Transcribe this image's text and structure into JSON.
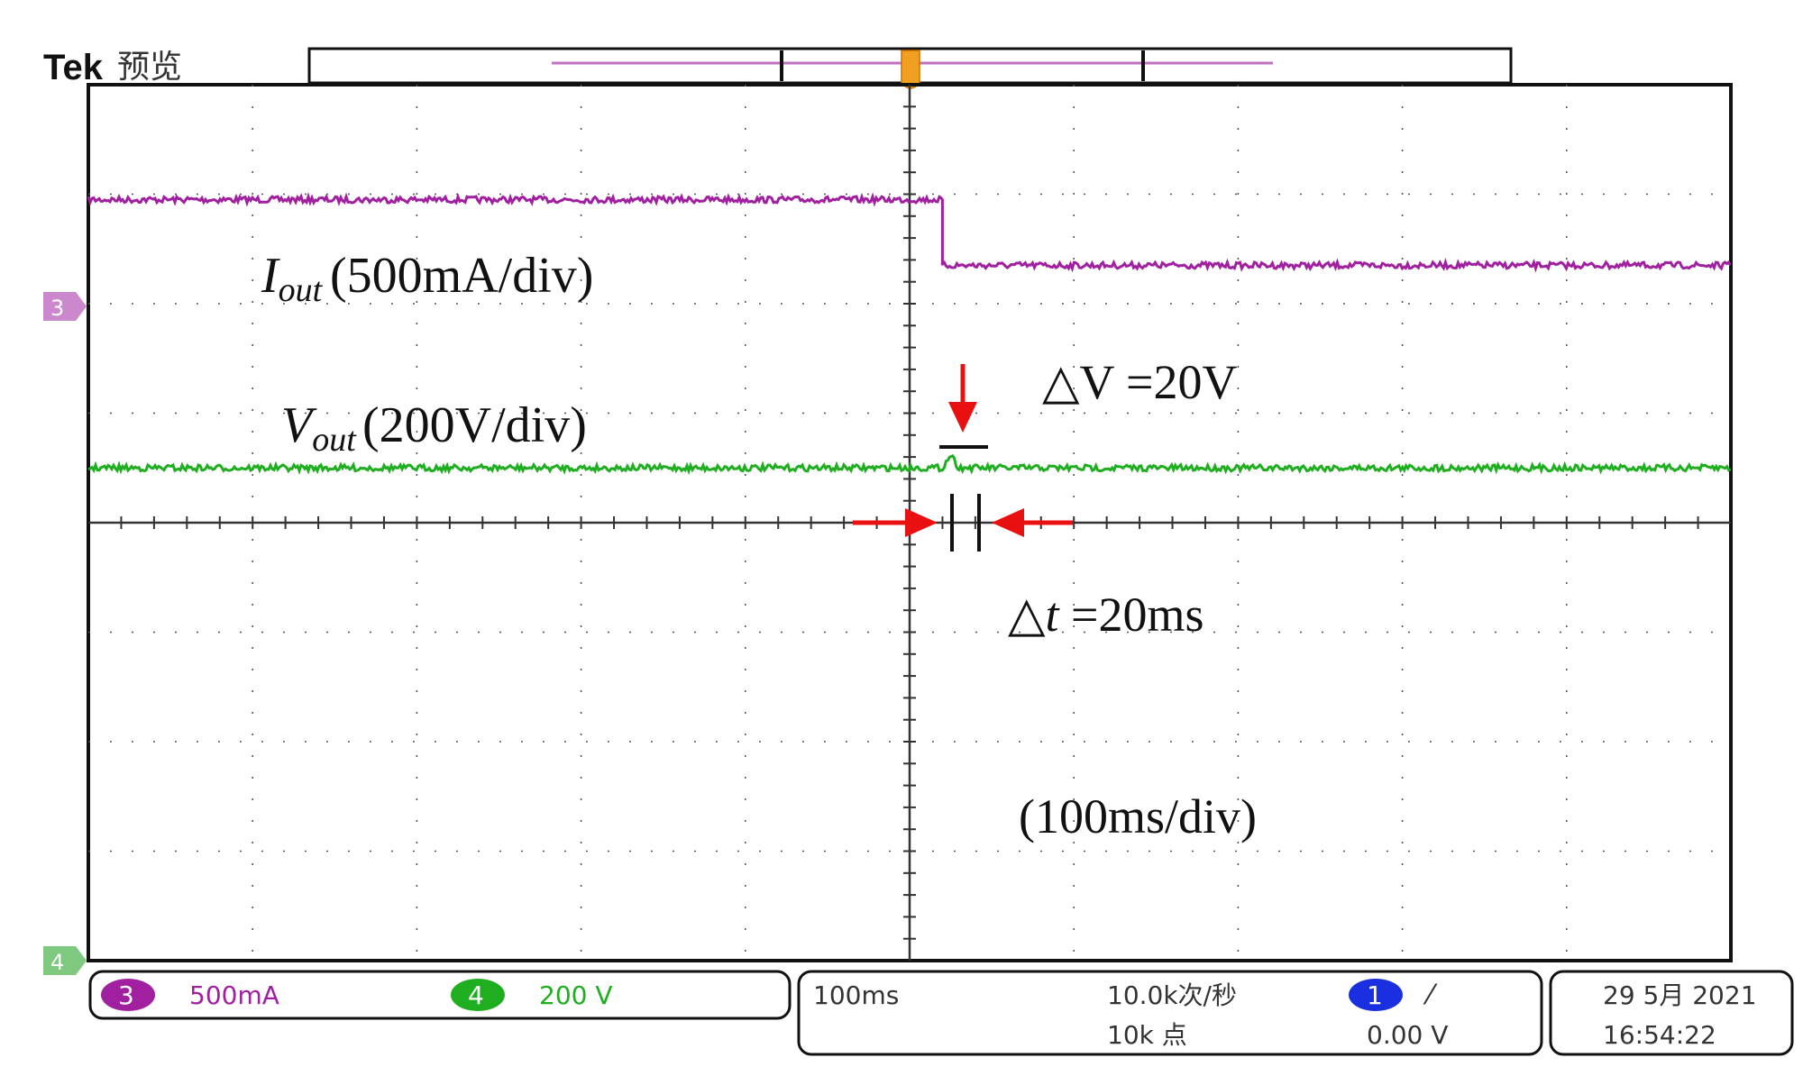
{
  "header": {
    "brand": "Tek",
    "mode": "预览"
  },
  "channels": [
    {
      "number": "3",
      "label_marker": "3",
      "scale": "500mA",
      "color": "#a020a0"
    },
    {
      "number": "4",
      "label_marker": "4",
      "scale": "200 V",
      "color": "#1fae1f"
    }
  ],
  "timebase": {
    "scale": "100ms",
    "sample_rate": "10.0k次/秒",
    "record_length": "10k 点"
  },
  "trigger": {
    "source": "1",
    "slope_symbol": "⁄",
    "level": "0.00 V",
    "color": "#1a2fe0"
  },
  "timestamp": {
    "date": "29 5月 2021",
    "time": "16:54:22"
  },
  "annotations": {
    "iout_base": "I",
    "iout_sub": "out",
    "iout_unit": "(500mA/div)",
    "vout_base": "V",
    "vout_sub": "out",
    "vout_unit": "(200V/div)",
    "delta_v": "△V  =20V",
    "delta_t_prefix": "△",
    "delta_t_var": "t",
    "delta_t_value": " =20ms",
    "time_div": "(100ms/div)",
    "arrow_color": "#e81010"
  },
  "chart_data": {
    "type": "line",
    "xlabel": "",
    "ylabel": "",
    "x_unit": "ms",
    "xlim": [
      -500,
      500
    ],
    "x_divisions": 10,
    "y_divisions": 8,
    "grid": true,
    "series": [
      {
        "name": "Iout",
        "channel": "3",
        "color": "#a020a0",
        "x": [
          -500,
          20,
          20,
          500
        ],
        "y_div": [
          2.95,
          2.95,
          2.35,
          2.35
        ]
      },
      {
        "name": "Vout",
        "channel": "4",
        "color": "#1fae1f",
        "x": [
          -500,
          20,
          25,
          30,
          500
        ],
        "y_div": [
          0.5,
          0.5,
          0.62,
          0.5,
          0.5
        ]
      }
    ],
    "channel_offsets_div": {
      "3": 2.0,
      "4": 0.0
    },
    "annotations": [
      "△V =20V",
      "△t =20ms",
      "(100ms/div)"
    ]
  }
}
